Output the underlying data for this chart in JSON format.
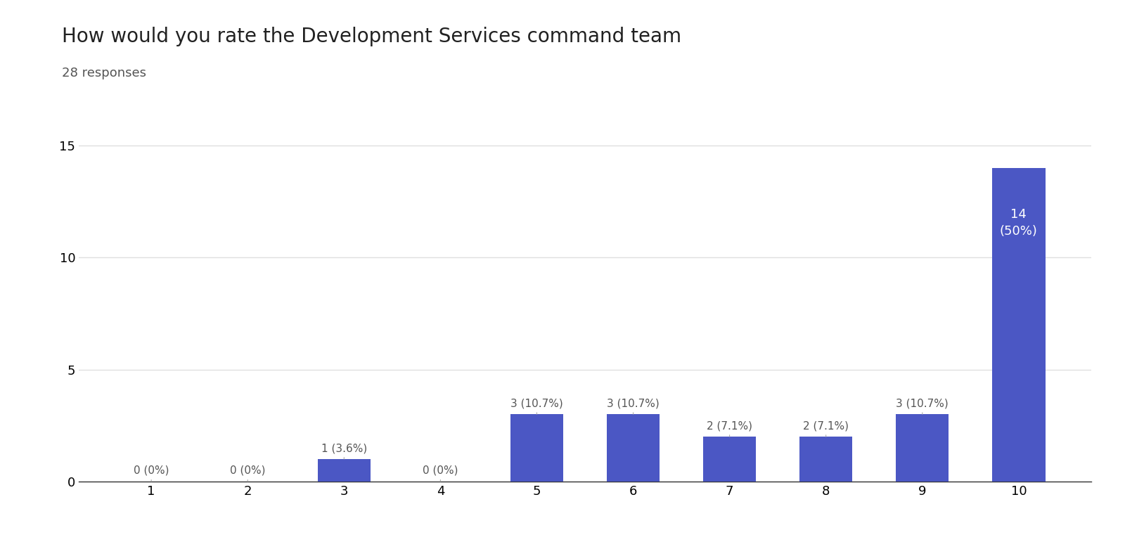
{
  "title": "How would you rate the Development Services command team",
  "subtitle": "28 responses",
  "categories": [
    1,
    2,
    3,
    4,
    5,
    6,
    7,
    8,
    9,
    10
  ],
  "values": [
    0,
    0,
    1,
    0,
    3,
    3,
    2,
    2,
    3,
    14
  ],
  "labels": [
    "0 (0%)",
    "0 (0%)",
    "1 (3.6%)",
    "0 (0%)",
    "3 (10.7%)",
    "3 (10.7%)",
    "2 (7.1%)",
    "2 (7.1%)",
    "3 (10.7%)",
    "14\n(50%)"
  ],
  "bar_color": "#4b57c4",
  "label_color_default": "#555555",
  "label_color_inside": "#ffffff",
  "inside_label_threshold": 10,
  "ylim": [
    0,
    16
  ],
  "yticks": [
    0,
    5,
    10,
    15
  ],
  "background_color": "#ffffff",
  "grid_color": "#e0e0e0",
  "title_fontsize": 20,
  "subtitle_fontsize": 13,
  "label_fontsize": 11,
  "tick_fontsize": 13
}
